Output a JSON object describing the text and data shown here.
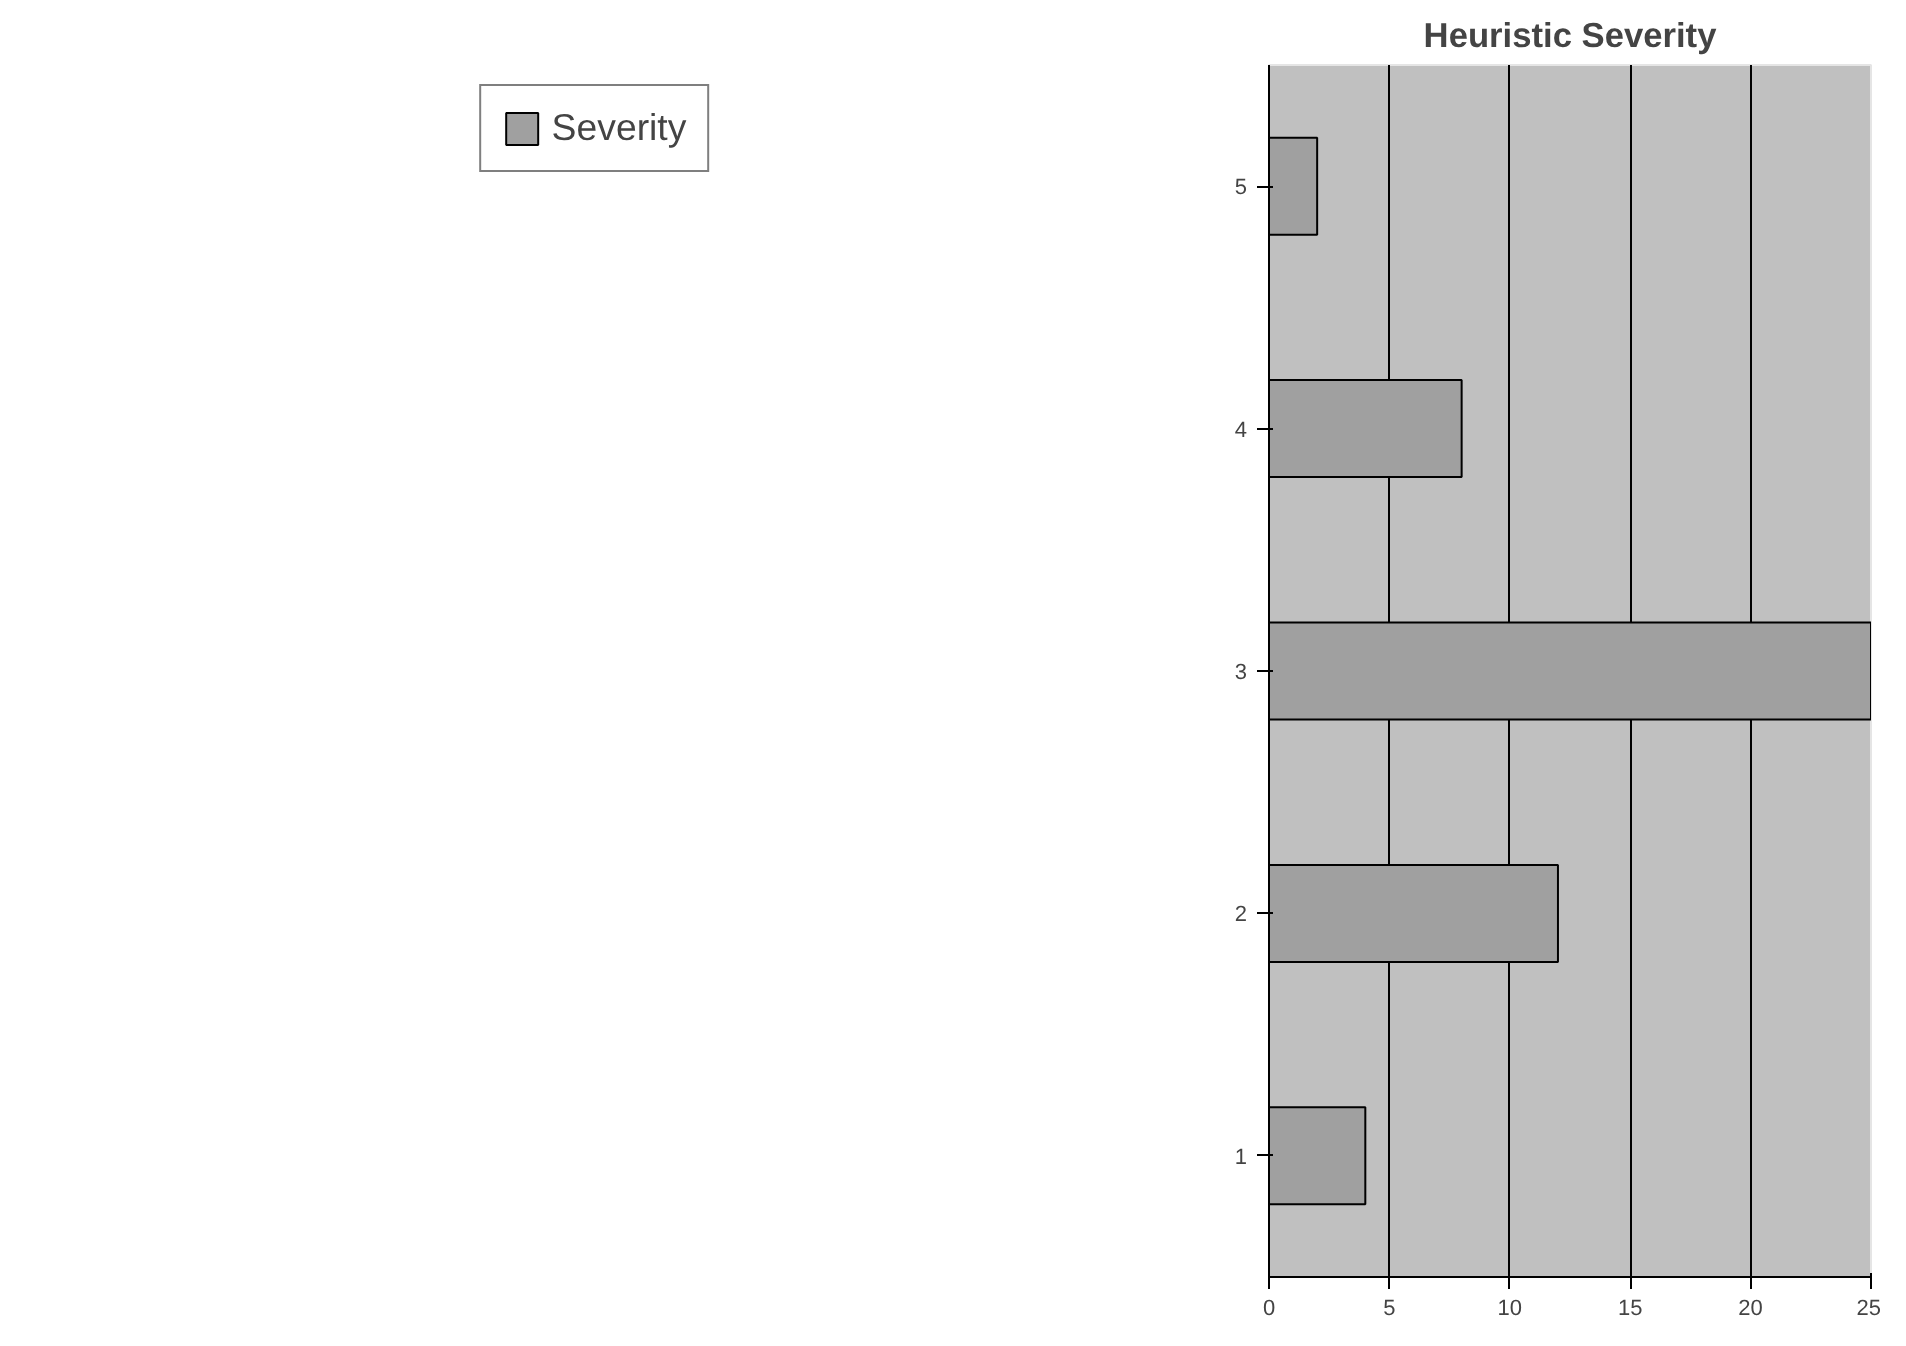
{
  "chart_data": {
    "type": "bar",
    "orientation": "horizontal",
    "title": "Heuristic Severity",
    "categories": [
      "5",
      "4",
      "3",
      "2",
      "1"
    ],
    "series": [
      {
        "name": "Severity",
        "color": "#a0a0a0",
        "values": [
          2,
          8,
          25,
          12,
          4
        ]
      }
    ],
    "xlim": [
      0,
      25
    ],
    "xticks": [
      0,
      5,
      10,
      15,
      20,
      25
    ],
    "grid": "x",
    "legend": "left"
  }
}
